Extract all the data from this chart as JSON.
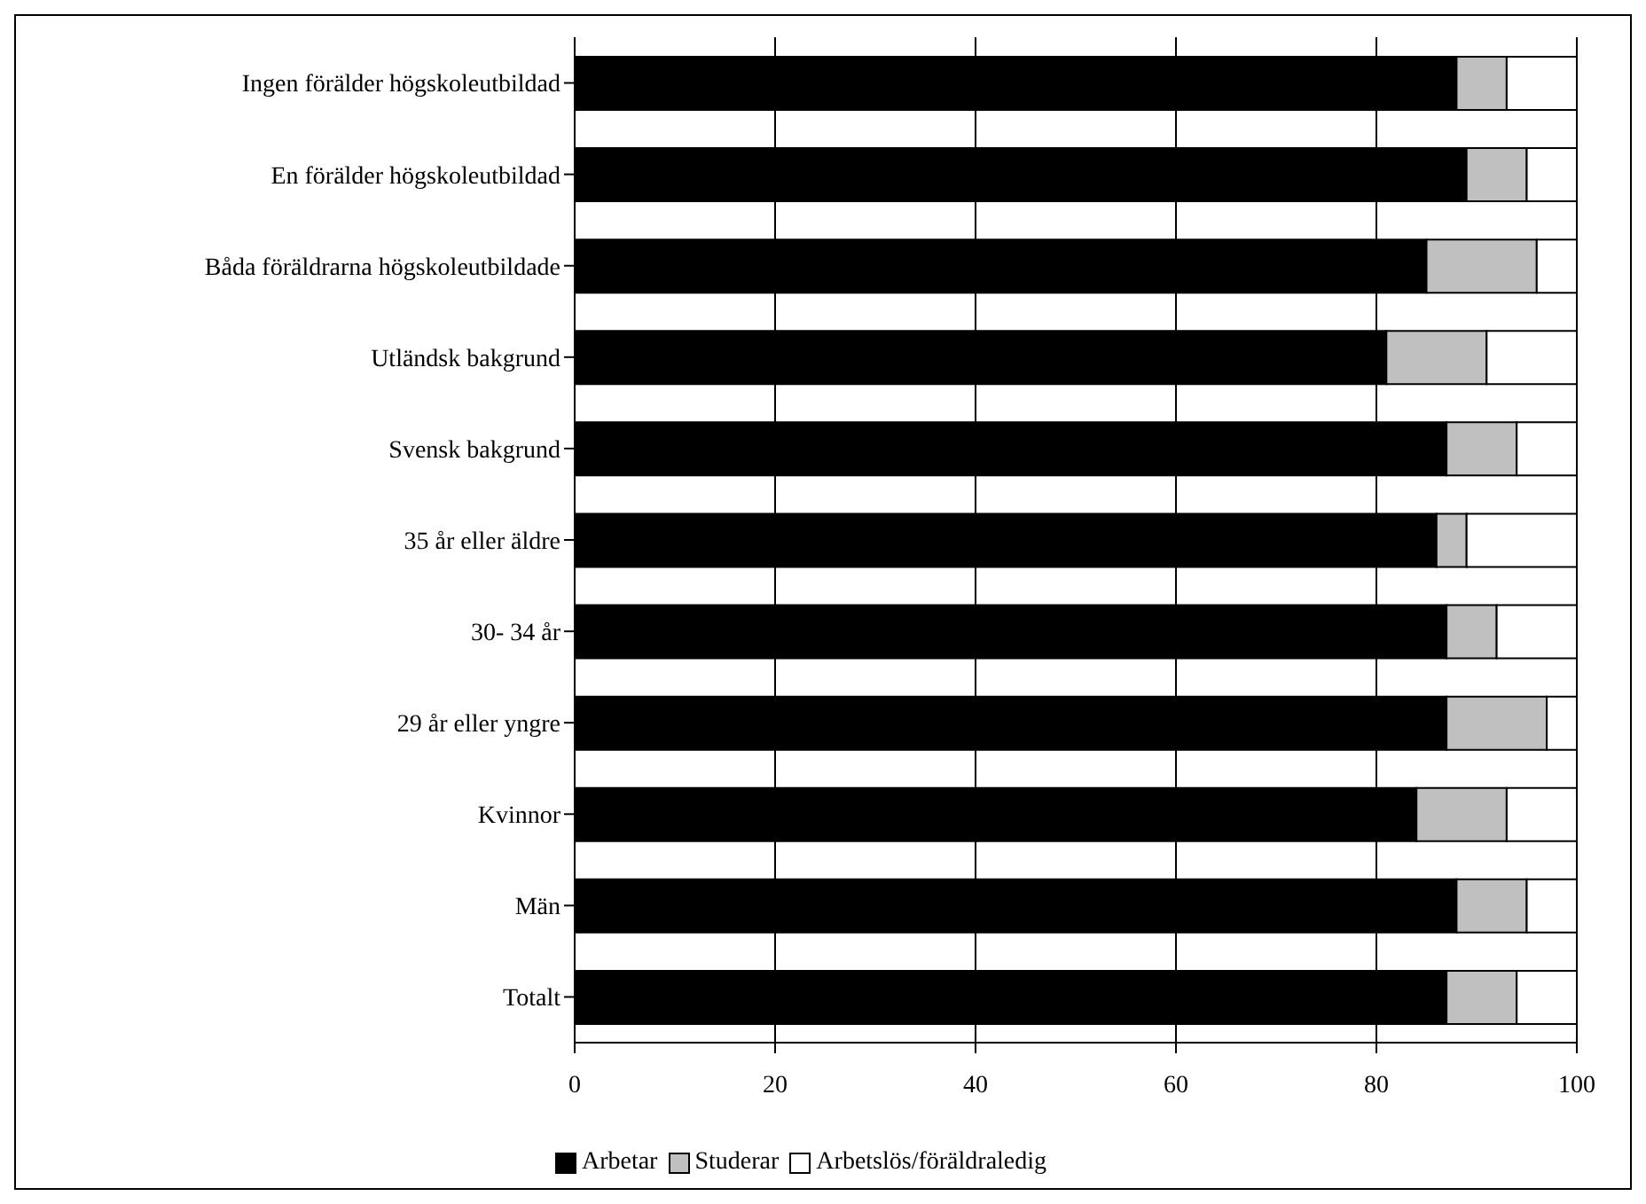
{
  "chart_data": {
    "type": "bar",
    "orientation": "horizontal",
    "stacked": true,
    "categories": [
      "Ingen förälder högskoleutbildad",
      "En förälder högskoleutbildad",
      "Båda föräldrarna högskoleutbildade",
      "Utländsk bakgrund",
      "Svensk bakgrund",
      "35 år eller äldre",
      "30- 34 år",
      "29 år eller yngre",
      "Kvinnor",
      "Män",
      "Totalt"
    ],
    "series": [
      {
        "name": "Arbetar",
        "color": "#000000",
        "values": [
          88,
          89,
          85,
          81,
          87,
          86,
          87,
          87,
          84,
          88,
          87
        ]
      },
      {
        "name": "Studerar",
        "color": "#c0c0c0",
        "values": [
          5,
          6,
          11,
          10,
          7,
          3,
          5,
          10,
          9,
          7,
          7
        ]
      },
      {
        "name": "Arbetslös/föräldraledig",
        "color": "#ffffff",
        "values": [
          7,
          5,
          4,
          9,
          6,
          11,
          8,
          3,
          7,
          5,
          6
        ]
      }
    ],
    "xlim": [
      0,
      100
    ],
    "xticks": [
      0,
      20,
      40,
      60,
      80,
      100
    ],
    "grid": "x",
    "legend": "bottom"
  }
}
